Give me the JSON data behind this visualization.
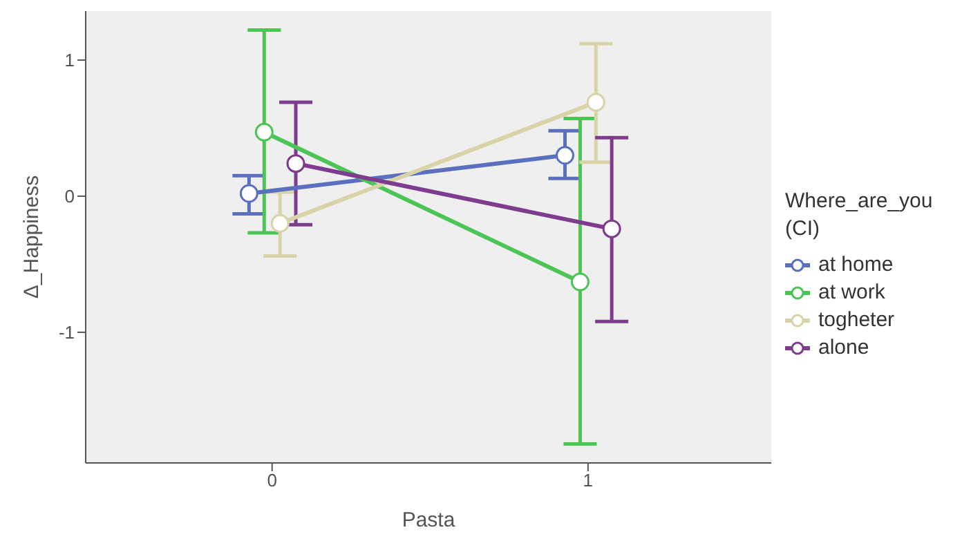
{
  "chart_data": {
    "type": "line",
    "xlabel": "Pasta",
    "ylabel": "Δ_Happiness",
    "legend_title": "Where_are_you (CI)",
    "legend": "right",
    "marker": "circle",
    "grid": false,
    "xlim": [
      -0.59,
      1.58
    ],
    "xticks": [
      0,
      1
    ],
    "ylim": [
      -1.96,
      1.36
    ],
    "yticks": [
      -1,
      0,
      1
    ],
    "series": [
      {
        "name": "at home",
        "color": "#5b6fbf",
        "x": [
          -0.073,
          0.927
        ],
        "values": [
          0.02,
          0.3
        ],
        "errors": [
          [
            -0.13,
            0.15
          ],
          [
            0.13,
            0.48
          ]
        ]
      },
      {
        "name": "at work",
        "color": "#4cc456",
        "x": [
          -0.025,
          0.975
        ],
        "values": [
          0.47,
          -0.63
        ],
        "errors": [
          [
            -0.27,
            1.22
          ],
          [
            -1.82,
            0.57
          ]
        ]
      },
      {
        "name": "togheter",
        "color": "#d9d4a8",
        "x": [
          0.025,
          1.025
        ],
        "values": [
          -0.2,
          0.69
        ],
        "errors": [
          [
            -0.44,
            0.03
          ],
          [
            0.25,
            1.12
          ]
        ]
      },
      {
        "name": "alone",
        "color": "#7d3c8e",
        "x": [
          0.075,
          1.075
        ],
        "values": [
          0.24,
          -0.24
        ],
        "errors": [
          [
            -0.21,
            0.69
          ],
          [
            -0.92,
            0.43
          ]
        ]
      }
    ]
  }
}
